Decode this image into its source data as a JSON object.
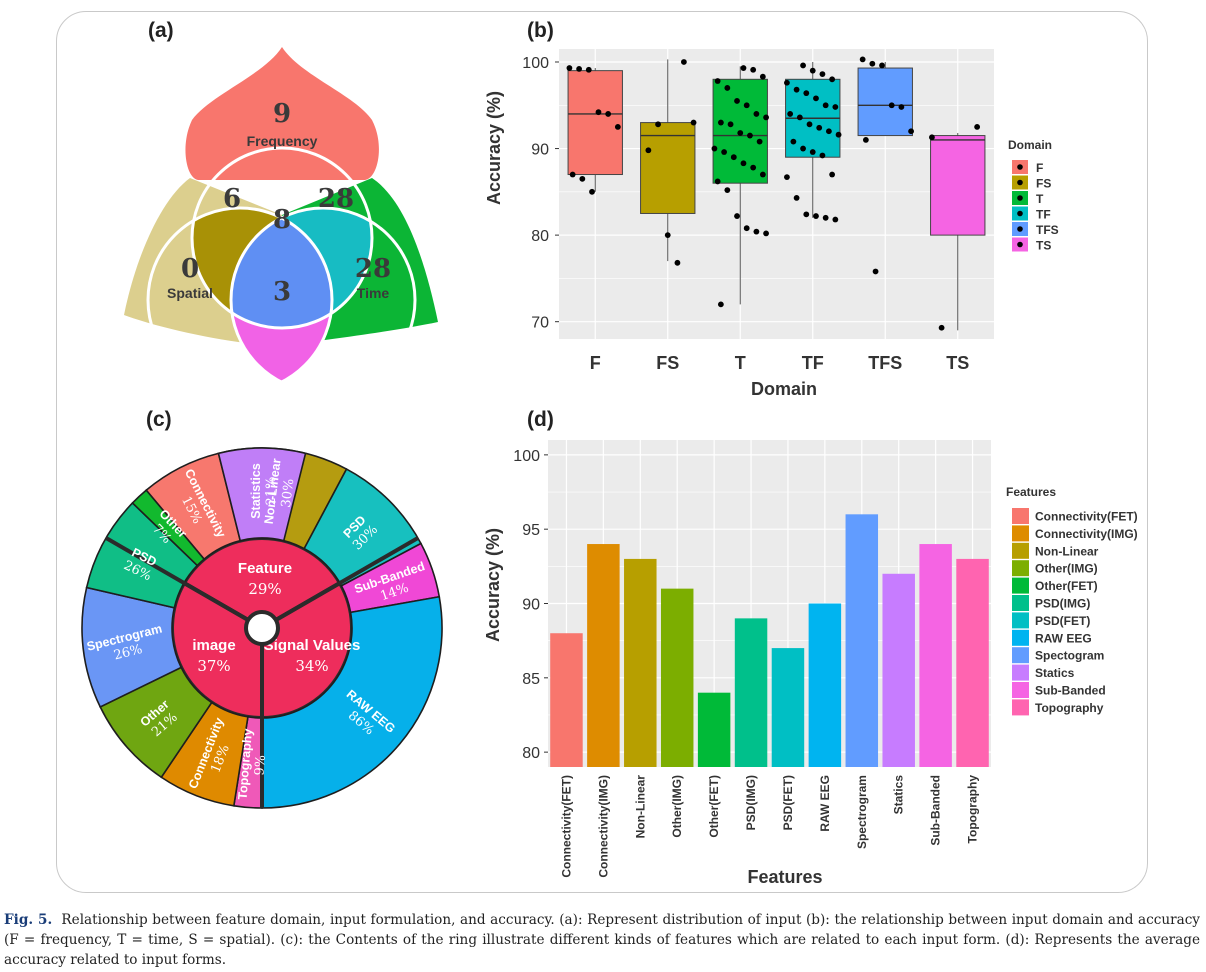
{
  "panels": {
    "a": {
      "letter": "(a)",
      "regions": [
        {
          "name": "frequency",
          "value": "9",
          "label": "Frequency",
          "color": "#f8766d"
        },
        {
          "name": "spatial",
          "value": "0",
          "label": "Spatial",
          "color": "#dccf8e"
        },
        {
          "name": "time",
          "value": "28",
          "label": "Time",
          "color": "#0cb535"
        },
        {
          "name": "freq-spatial",
          "value": "6",
          "label": "",
          "color": "#a89106"
        },
        {
          "name": "freq-time",
          "value": "28",
          "label": "",
          "color": "#17bcc3"
        },
        {
          "name": "time-spatial",
          "value": "3",
          "label": "",
          "color": "#f162e6"
        },
        {
          "name": "all-three",
          "value": "8",
          "label": "",
          "color": "#5f8ff3"
        }
      ]
    },
    "c": {
      "letter": "(c)",
      "inner": [
        {
          "label": "Feature",
          "pct": "29%",
          "value": 29
        },
        {
          "label": "Signal Values",
          "pct": "34%",
          "value": 34
        },
        {
          "label": "image",
          "pct": "37%",
          "value": 37
        }
      ],
      "inner_color": "#ee2d5c",
      "outer": [
        {
          "label": "Non-Linear",
          "pct": "30%",
          "group": "Feature",
          "value": 30,
          "color": "#b59c10"
        },
        {
          "label": "PSD",
          "pct": "30%",
          "group": "Feature",
          "value": 30,
          "color": "#17c0bf"
        },
        {
          "label": "Sub-Banded",
          "pct": "14%",
          "group": "Signal Values",
          "value": 14,
          "color": "#f048d6"
        },
        {
          "label": "RAW EEG",
          "pct": "86%",
          "group": "Signal Values",
          "value": 86,
          "color": "#06b0ea"
        },
        {
          "label": "Topography",
          "pct": "9%",
          "group": "image",
          "value": 9,
          "color": "#ef59b8"
        },
        {
          "label": "Connectivity",
          "pct": "18%",
          "group": "image",
          "value": 18,
          "color": "#df8a00"
        },
        {
          "label": "Other",
          "pct": "21%",
          "group": "image",
          "value": 21,
          "color": "#6fa611"
        },
        {
          "label": "Spectrogram",
          "pct": "26%",
          "group": "image",
          "value": 26,
          "color": "#6a96f5"
        },
        {
          "label": "PSD",
          "pct": "26%",
          "group": "image",
          "value": 26,
          "color": "#10be86"
        },
        {
          "label": "Other",
          "pct": "7%",
          "group": "Feature",
          "value": 7,
          "color": "#12b92e"
        },
        {
          "label": "Connectivity",
          "pct": "15%",
          "group": "Feature",
          "value": 15,
          "color": "#f7786e"
        },
        {
          "label": "Statistics",
          "pct": "21%",
          "group": "Feature",
          "value": 21,
          "color": "#c07ef7"
        }
      ]
    }
  },
  "chart_data": [
    {
      "panel": "(b)",
      "type": "box",
      "xlabel": "Domain",
      "ylabel": "Accuracy (%)",
      "ylim": [
        68,
        101.5
      ],
      "yticks": [
        70,
        80,
        90,
        100
      ],
      "legend": {
        "title": "Domain",
        "position": "right"
      },
      "categories": [
        "F",
        "FS",
        "T",
        "TF",
        "TFS",
        "TS"
      ],
      "colors": [
        "#f8766d",
        "#b79f00",
        "#00ba38",
        "#00bfc4",
        "#619cff",
        "#f564e3"
      ],
      "boxes": [
        {
          "whisker_low": 85,
          "q1": 87,
          "median": 94,
          "q3": 99,
          "whisker_high": 99.3
        },
        {
          "whisker_low": 77,
          "q1": 82.5,
          "median": 91.5,
          "q3": 93,
          "whisker_high": 100.3
        },
        {
          "whisker_low": 72,
          "q1": 86,
          "median": 91.5,
          "q3": 98,
          "whisker_high": 99.5
        },
        {
          "whisker_low": 82,
          "q1": 89,
          "median": 93.5,
          "q3": 98,
          "whisker_high": 100
        },
        {
          "whisker_low": 91.5,
          "q1": 91.5,
          "median": 95,
          "q3": 99.3,
          "whisker_high": 100
        },
        {
          "whisker_low": 69,
          "q1": 80,
          "median": 91,
          "q3": 91.5,
          "whisker_high": 91.8
        }
      ],
      "points": [
        [
          99.3,
          99.2,
          99.1,
          94.2,
          94,
          92.5,
          87,
          86.5,
          85
        ],
        [
          100,
          93,
          89.8,
          92.8,
          80,
          76.8
        ],
        [
          99.3,
          99.1,
          98.3,
          97.8,
          97,
          95.5,
          95,
          94,
          93.6,
          93,
          92.8,
          91.8,
          91.5,
          90.8,
          90,
          89.6,
          89,
          88.3,
          87.8,
          87,
          86.2,
          85.2,
          82.2,
          80.8,
          80.4,
          80.2,
          72
        ],
        [
          99.6,
          99,
          98.6,
          98,
          97.6,
          96.8,
          96.4,
          95.8,
          95,
          94.8,
          94,
          93.6,
          92.8,
          92.4,
          92,
          91.6,
          90.8,
          90,
          89.6,
          89.2,
          87,
          86.7,
          84.3,
          82.4,
          82.2,
          82,
          81.8
        ],
        [
          100.3,
          99.8,
          99.6,
          95,
          94.8,
          92,
          91,
          75.8
        ],
        [
          92.5,
          91.3,
          69.3
        ]
      ]
    },
    {
      "panel": "(d)",
      "type": "bar",
      "xlabel": "Features",
      "ylabel": "Accuracy (%)",
      "ylim": [
        79,
        101
      ],
      "yticks": [
        80,
        85,
        90,
        95,
        100
      ],
      "legend": {
        "title": "Features",
        "position": "right"
      },
      "categories": [
        "Connectivity(FET)",
        "Connectivity(IMG)",
        "Non-Linear",
        "Other(IMG)",
        "Other(FET)",
        "PSD(IMG)",
        "PSD(FET)",
        "RAW EEG",
        "Spectrogram",
        "Statics",
        "Sub-Banded",
        "Topography"
      ],
      "legend_labels": [
        "Connectivity(FET)",
        "Connectivity(IMG)",
        "Non-Linear",
        "Other(IMG)",
        "Other(FET)",
        "PSD(IMG)",
        "PSD(FET)",
        "RAW EEG",
        "Spectogram",
        "Statics",
        "Sub-Banded",
        "Topography"
      ],
      "values": [
        88,
        94,
        93,
        91,
        84,
        89,
        87,
        90,
        96,
        92,
        94,
        93
      ],
      "colors": [
        "#f8766d",
        "#de8c00",
        "#b79f00",
        "#7cae00",
        "#00ba38",
        "#00c08b",
        "#00bfc4",
        "#00b4f0",
        "#619cff",
        "#c77cff",
        "#f564e3",
        "#ff64b0"
      ]
    }
  ],
  "caption": {
    "label": "Fig. 5.",
    "text": "Relationship between feature domain, input formulation, and accuracy. (a): Represent distribution of input (b): the relationship between input domain and accuracy (F = frequency, T = time, S = spatial). (c): the Contents of the ring illustrate different kinds of features which are related to each input form. (d): Represents the average accuracy related to input forms."
  }
}
